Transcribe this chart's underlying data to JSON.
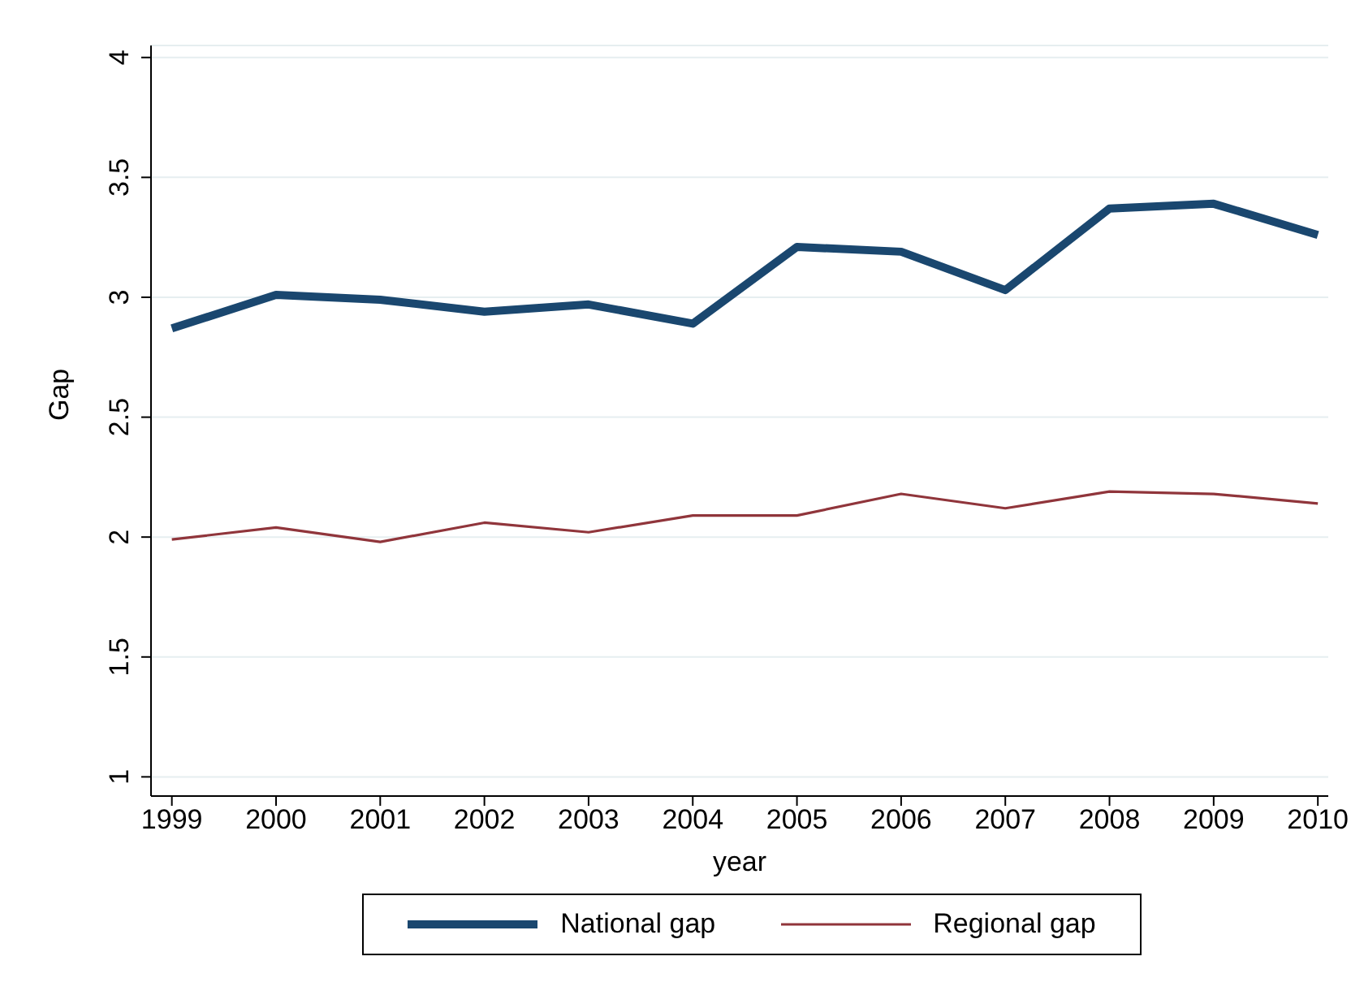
{
  "chart_data": {
    "type": "line",
    "xlabel": "year",
    "ylabel": "Gap",
    "x": [
      1999,
      2000,
      2001,
      2002,
      2003,
      2004,
      2005,
      2006,
      2007,
      2008,
      2009,
      2010
    ],
    "series": [
      {
        "name": "National gap",
        "color": "#1a476f",
        "values": [
          2.87,
          3.01,
          2.99,
          2.94,
          2.97,
          2.89,
          3.21,
          3.19,
          3.03,
          3.37,
          3.39,
          3.26
        ]
      },
      {
        "name": "Regional gap",
        "color": "#90353b",
        "values": [
          1.99,
          2.04,
          1.98,
          2.06,
          2.02,
          2.09,
          2.09,
          2.18,
          2.12,
          2.19,
          2.18,
          2.14
        ]
      }
    ],
    "xlim": [
      1998.8,
      2010.1
    ],
    "xticks": [
      1999,
      2000,
      2001,
      2002,
      2003,
      2004,
      2005,
      2006,
      2007,
      2008,
      2009,
      2010
    ],
    "ylim": [
      0.92,
      4.05
    ],
    "yticks": [
      1,
      1.5,
      2,
      2.5,
      3,
      3.5,
      4
    ],
    "grid": "y",
    "legend": "bottom",
    "marker": "none",
    "line_style": "solid"
  }
}
